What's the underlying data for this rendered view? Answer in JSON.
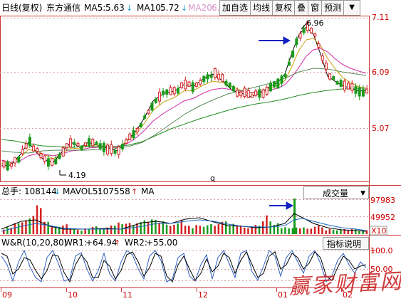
{
  "main_panel": {
    "period": "日线(复权)",
    "stock_name": "东方通信",
    "ma5": {
      "label": "MA5:",
      "value": "5.63",
      "color": "#000000"
    },
    "ma10": {
      "label": "MA10:",
      "value": "5.72",
      "color": "#d4a017"
    },
    "ma20": {
      "label": "MA20:",
      "value": "6.",
      "color": "#d02aa0"
    },
    "price_axis": [
      "7.11",
      "6.09",
      "5.07"
    ],
    "high_label": "6.96",
    "low_label": "4.19",
    "marker": "q",
    "arrow_color": "#1020c0"
  },
  "toolbar": {
    "items": [
      "加自选",
      "均线",
      "复权",
      "叠",
      "窗",
      "预测"
    ],
    "more": "▼"
  },
  "volume_panel": {
    "label_total": "总手:",
    "total_value": "108144",
    "mavol_label": "MAVOL5:",
    "mavol_value": "107558",
    "ma_cut": "MA",
    "dropdown": "成交量",
    "axis": [
      "97983",
      "49952"
    ],
    "unit": "X10"
  },
  "wr_panel": {
    "title": "W&R(10,20,80)",
    "wr1_label": "WR1:",
    "wr1_value": "+64.94",
    "wr2_label": "WR2:",
    "wr2_value": "+55.00",
    "help_button": "指标说明",
    "axis": [
      "100.0",
      "50.00"
    ]
  },
  "time_axis": [
    "09",
    "10",
    "11",
    "12",
    "01",
    "02"
  ],
  "watermark": "赢家财富网",
  "colors": {
    "up": "#d42020",
    "down": "#1a9a1a",
    "ma60": "#228b22",
    "wr_red": "#aa0000",
    "wr_blue": "#3060c0"
  }
}
